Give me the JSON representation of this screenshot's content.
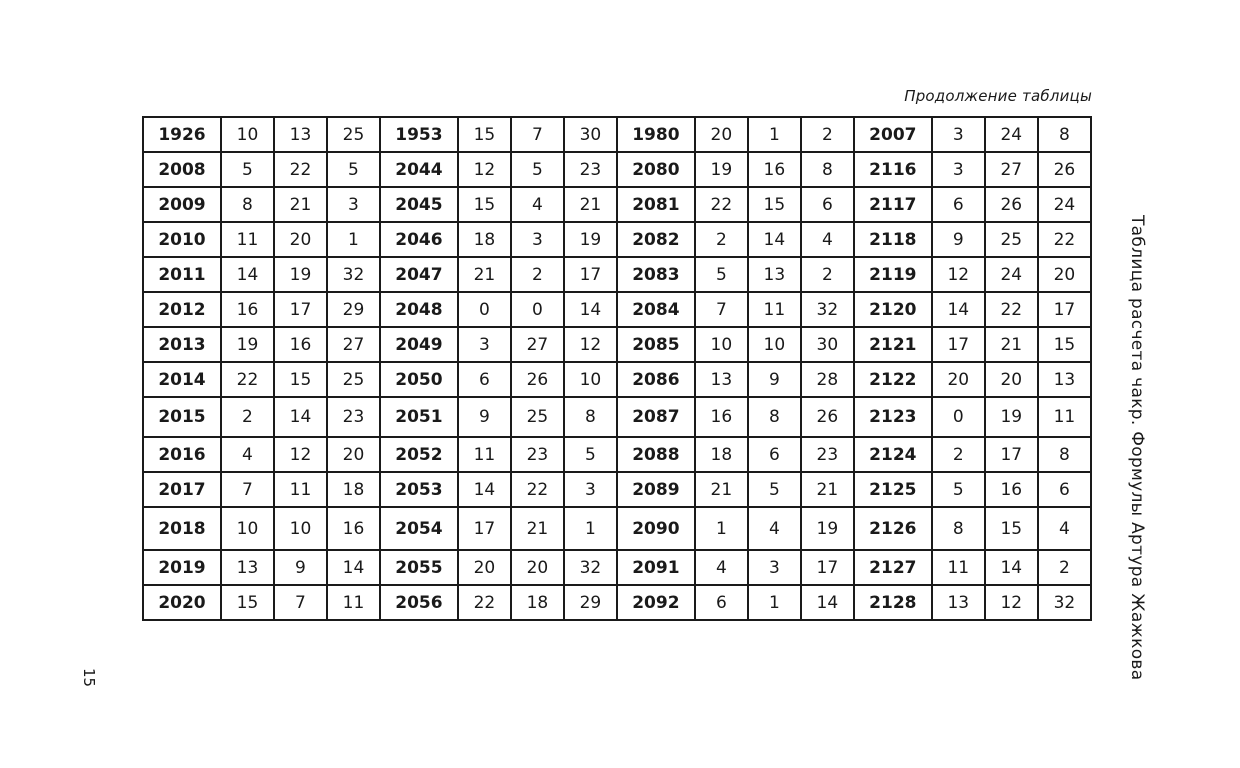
{
  "caption": "Продолжение таблицы",
  "side_title": "Таблица расчета чакр. Формулы Артура Жажкова",
  "page_number": "15",
  "table": {
    "rows": [
      [
        "1926",
        "10",
        "13",
        "25",
        "1953",
        "15",
        "7",
        "30",
        "1980",
        "20",
        "1",
        "2",
        "2007",
        "3",
        "24",
        "8"
      ],
      [
        "2008",
        "5",
        "22",
        "5",
        "2044",
        "12",
        "5",
        "23",
        "2080",
        "19",
        "16",
        "8",
        "2116",
        "3",
        "27",
        "26"
      ],
      [
        "2009",
        "8",
        "21",
        "3",
        "2045",
        "15",
        "4",
        "21",
        "2081",
        "22",
        "15",
        "6",
        "2117",
        "6",
        "26",
        "24"
      ],
      [
        "2010",
        "11",
        "20",
        "1",
        "2046",
        "18",
        "3",
        "19",
        "2082",
        "2",
        "14",
        "4",
        "2118",
        "9",
        "25",
        "22"
      ],
      [
        "2011",
        "14",
        "19",
        "32",
        "2047",
        "21",
        "2",
        "17",
        "2083",
        "5",
        "13",
        "2",
        "2119",
        "12",
        "24",
        "20"
      ],
      [
        "2012",
        "16",
        "17",
        "29",
        "2048",
        "0",
        "0",
        "14",
        "2084",
        "7",
        "11",
        "32",
        "2120",
        "14",
        "22",
        "17"
      ],
      [
        "2013",
        "19",
        "16",
        "27",
        "2049",
        "3",
        "27",
        "12",
        "2085",
        "10",
        "10",
        "30",
        "2121",
        "17",
        "21",
        "15"
      ],
      [
        "2014",
        "22",
        "15",
        "25",
        "2050",
        "6",
        "26",
        "10",
        "2086",
        "13",
        "9",
        "28",
        "2122",
        "20",
        "20",
        "13"
      ],
      [
        "2015",
        "2",
        "14",
        "23",
        "2051",
        "9",
        "25",
        "8",
        "2087",
        "16",
        "8",
        "26",
        "2123",
        "0",
        "19",
        "11"
      ],
      [
        "2016",
        "4",
        "12",
        "20",
        "2052",
        "11",
        "23",
        "5",
        "2088",
        "18",
        "6",
        "23",
        "2124",
        "2",
        "17",
        "8"
      ],
      [
        "2017",
        "7",
        "11",
        "18",
        "2053",
        "14",
        "22",
        "3",
        "2089",
        "21",
        "5",
        "21",
        "2125",
        "5",
        "16",
        "6"
      ],
      [
        "2018",
        "10",
        "10",
        "16",
        "2054",
        "17",
        "21",
        "1",
        "2090",
        "1",
        "4",
        "19",
        "2126",
        "8",
        "15",
        "4"
      ],
      [
        "2019",
        "13",
        "9",
        "14",
        "2055",
        "20",
        "20",
        "32",
        "2091",
        "4",
        "3",
        "17",
        "2127",
        "11",
        "14",
        "2"
      ],
      [
        "2020",
        "15",
        "7",
        "11",
        "2056",
        "22",
        "18",
        "29",
        "2092",
        "6",
        "1",
        "14",
        "2128",
        "13",
        "12",
        "32"
      ]
    ]
  }
}
